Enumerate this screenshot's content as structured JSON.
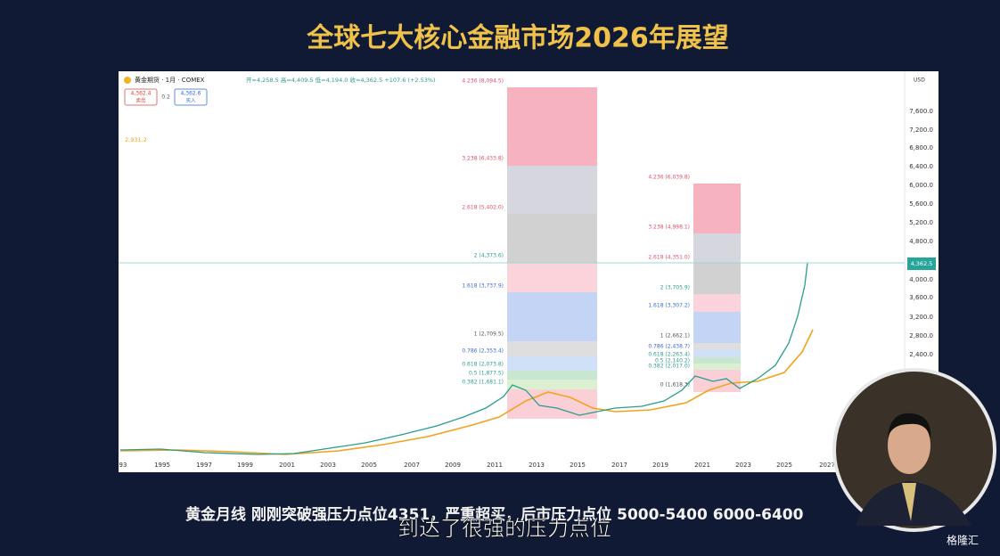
{
  "header": {
    "title": "全球七大核心金融市场2026年展望"
  },
  "chart": {
    "symbol": "黄金期货 · 1月 · COMEX",
    "ohlc": "开=4,258.5  高=4,409.5  低=4,194.0  收=4,362.5  +107.6 (+2.53%)",
    "sell": {
      "price": "4,362.4",
      "label": "卖出"
    },
    "spread": "0.2",
    "buy": {
      "price": "4,362.6",
      "label": "买入"
    },
    "ma_value": "2,931.2",
    "currency": "USD",
    "last_price": "4,362.5",
    "y_labels": [
      "7,600.0",
      "7,200.0",
      "6,800.0",
      "6,400.0",
      "6,000.0",
      "5,600.0",
      "5,200.0",
      "4,800.0",
      "4,000.0",
      "3,600.0",
      "3,200.0",
      "2,800.0",
      "2,400.0"
    ],
    "x_labels": [
      "93",
      "1995",
      "1997",
      "1999",
      "2001",
      "2003",
      "2005",
      "2007",
      "2009",
      "2011",
      "2013",
      "2015",
      "2017",
      "2019",
      "2021",
      "2023",
      "2025",
      "2027"
    ],
    "fib_left": [
      "4.236 (8,094.5)",
      "3.238 (6,433.8)",
      "2.618 (5,402.0)",
      "2 (4,373.6)",
      "1.618 (3,737.9)",
      "1 (2,709.5)",
      "0.786 (2,353.4)",
      "0.618 (2,073.8)",
      "0.5 (1,877.5)",
      "0.382 (1,681.1)"
    ],
    "fib_right": [
      "4.236 (6,039.8)",
      "3.238 (4,998.1)",
      "2.618 (4,351.0)",
      "2 (3,705.9)",
      "1.618 (3,307.2)",
      "1 (2,662.1)",
      "0.786 (2,438.7)",
      "0.618 (2,263.4)",
      "0.5 (2,140.2)",
      "0.382 (2,017.0)",
      "0 (1,618.3)"
    ]
  },
  "subtitle": "黄金月线  刚刚突破强压力点位4351，严重超买，后市压力点位 5000-5400  6000-6400",
  "caption": "到达了很强的压力点位",
  "logo": "格隆汇"
}
